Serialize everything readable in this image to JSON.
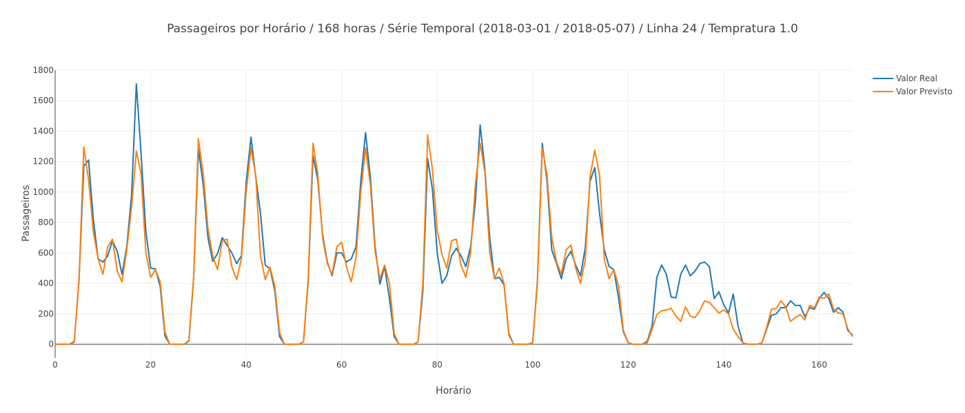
{
  "chart_data": {
    "type": "line",
    "title": "Passageiros por Horário / 168 horas / Série Temporal (2018-03-01 / 2018-05-07) / Linha 24 / Tempratura 1.0",
    "xlabel": "Horário",
    "ylabel": "Passageiros",
    "xlim": [
      0,
      167
    ],
    "ylim": [
      -90,
      1800
    ],
    "x_ticks": [
      0,
      20,
      40,
      60,
      80,
      100,
      120,
      140,
      160
    ],
    "y_ticks": [
      0,
      200,
      400,
      600,
      800,
      1000,
      1200,
      1400,
      1600,
      1800
    ],
    "grid": true,
    "legend_position": "top-right",
    "series": [
      {
        "name": "Valor Real",
        "color": "#1f77b4",
        "values": [
          0,
          0,
          0,
          0,
          15,
          420,
          1170,
          1210,
          820,
          560,
          540,
          580,
          680,
          610,
          460,
          640,
          980,
          1710,
          1250,
          740,
          500,
          495,
          380,
          55,
          0,
          0,
          0,
          0,
          20,
          430,
          1280,
          1050,
          700,
          545,
          595,
          700,
          650,
          600,
          530,
          580,
          1060,
          1360,
          1100,
          860,
          520,
          495,
          350,
          50,
          0,
          0,
          0,
          0,
          15,
          420,
          1240,
          1080,
          720,
          540,
          450,
          600,
          600,
          540,
          560,
          640,
          1070,
          1390,
          1100,
          640,
          395,
          510,
          300,
          50,
          0,
          0,
          0,
          0,
          15,
          350,
          1220,
          1020,
          600,
          400,
          450,
          580,
          630,
          580,
          510,
          640,
          940,
          1440,
          1150,
          700,
          430,
          440,
          390,
          70,
          0,
          0,
          0,
          0,
          10,
          420,
          1320,
          1070,
          620,
          530,
          430,
          560,
          610,
          520,
          450,
          630,
          1070,
          1160,
          860,
          620,
          510,
          490,
          300,
          80,
          10,
          0,
          0,
          0,
          20,
          120,
          440,
          520,
          460,
          310,
          305,
          460,
          520,
          450,
          480,
          530,
          540,
          510,
          300,
          345,
          260,
          205,
          330,
          120,
          10,
          0,
          0,
          0,
          10,
          100,
          190,
          200,
          240,
          240,
          285,
          255,
          255,
          180,
          240,
          230,
          300,
          340,
          300,
          210,
          240,
          210,
          90,
          60
        ]
      },
      {
        "name": "Valor Previsto",
        "color": "#ff7f0e",
        "values": [
          0,
          0,
          0,
          0,
          20,
          410,
          1295,
          1080,
          740,
          560,
          460,
          640,
          690,
          480,
          410,
          620,
          900,
          1270,
          1120,
          600,
          440,
          490,
          410,
          80,
          0,
          0,
          0,
          0,
          25,
          440,
          1350,
          1120,
          760,
          580,
          490,
          680,
          690,
          510,
          425,
          560,
          1000,
          1290,
          1110,
          580,
          425,
          505,
          380,
          75,
          0,
          0,
          0,
          0,
          15,
          440,
          1320,
          1120,
          700,
          530,
          460,
          640,
          670,
          510,
          410,
          570,
          1000,
          1290,
          1050,
          610,
          430,
          520,
          400,
          70,
          0,
          0,
          0,
          0,
          15,
          400,
          1375,
          1150,
          750,
          590,
          500,
          680,
          690,
          520,
          440,
          600,
          1050,
          1320,
          1130,
          600,
          430,
          500,
          400,
          60,
          0,
          0,
          0,
          0,
          10,
          400,
          1290,
          1110,
          700,
          540,
          460,
          620,
          650,
          500,
          400,
          550,
          1100,
          1275,
          1110,
          560,
          430,
          490,
          380,
          90,
          10,
          0,
          0,
          0,
          10,
          100,
          195,
          220,
          225,
          235,
          185,
          150,
          245,
          185,
          175,
          220,
          285,
          275,
          240,
          205,
          225,
          200,
          100,
          50,
          10,
          0,
          0,
          0,
          10,
          110,
          230,
          235,
          285,
          245,
          150,
          175,
          195,
          160,
          255,
          240,
          310,
          300,
          330,
          230,
          205,
          200,
          100,
          50
        ]
      }
    ]
  }
}
